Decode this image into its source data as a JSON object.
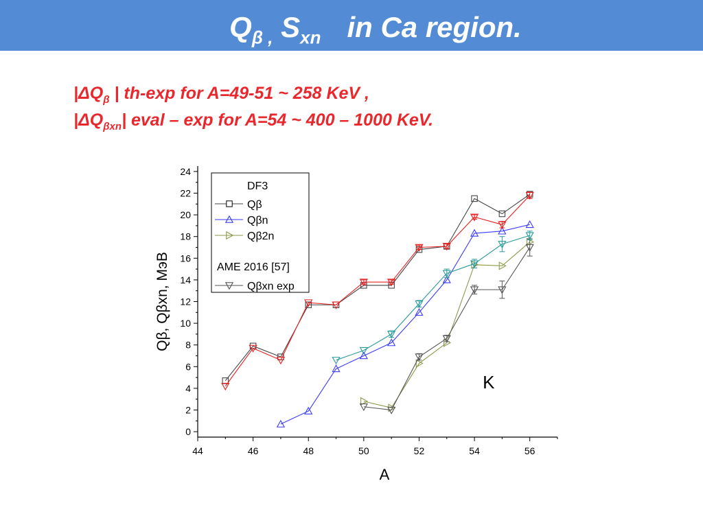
{
  "slide": {
    "title_main_1": "Q",
    "title_sub_1": "β ,",
    "title_main_2": "S",
    "title_sub_2": "xn",
    "title_rest": "in Ca region.",
    "note1_pre": "|ΔQ",
    "note1_sub": "β",
    "note1_post": " | th-exp  for A=49-51 ~ 258 KeV ,",
    "note2_pre": "|ΔQ",
    "note2_sub": "βxn",
    "note2_post": "| eval – exp  for A=54 ~ 400 – 1000 KeV.",
    "colors": {
      "header_bg": "#538cd5",
      "title_text": "#ffffff",
      "note_text": "#e8282d"
    }
  },
  "chart_data": {
    "type": "line",
    "xlabel": "A",
    "ylabel": "Qβ, Qβxn, МэВ",
    "xlim": [
      44,
      57
    ],
    "ylim": [
      -0.5,
      24.5
    ],
    "xticks": [
      44,
      46,
      48,
      50,
      52,
      54,
      56
    ],
    "yticks": [
      0,
      2,
      4,
      6,
      8,
      10,
      12,
      14,
      16,
      18,
      20,
      22,
      24
    ],
    "annotation": "K",
    "legend": {
      "position": "top-left",
      "group1_title": "DF3",
      "group2_title": "AME 2016 [57]"
    },
    "series": [
      {
        "name": "Qβ",
        "group": "DF3",
        "marker": "square",
        "color": "#444444",
        "x": [
          45,
          46,
          47,
          48,
          49,
          50,
          51,
          52,
          53,
          54,
          55,
          56
        ],
        "y": [
          4.7,
          7.9,
          6.9,
          11.7,
          11.7,
          13.5,
          13.5,
          16.8,
          17.1,
          21.5,
          20.1,
          21.9
        ]
      },
      {
        "name": "Qβn",
        "group": "DF3",
        "marker": "triangle-up",
        "color": "#3a3aff",
        "x": [
          47,
          48,
          49,
          50,
          51,
          52,
          53,
          54,
          55,
          56
        ],
        "y": [
          0.7,
          1.9,
          5.8,
          7.0,
          8.2,
          11.0,
          14.0,
          18.3,
          18.5,
          19.1
        ]
      },
      {
        "name": "Qβ2n",
        "group": "DF3",
        "marker": "triangle-right",
        "color": "#8a9a4a",
        "x": [
          50,
          51,
          52,
          53,
          54,
          55,
          56
        ],
        "y": [
          2.8,
          2.2,
          6.3,
          8.2,
          15.4,
          15.3,
          17.5
        ]
      },
      {
        "name": "Qβxn exp",
        "group": "AME 2016 [57]",
        "marker": "triangle-down",
        "color": "#555555",
        "x": [
          50,
          51,
          52,
          53,
          54,
          55,
          56
        ],
        "y": [
          2.3,
          2.0,
          6.9,
          8.6,
          13.1,
          13.1,
          17.0
        ],
        "err": [
          0,
          0,
          0.3,
          0.3,
          0.4,
          0.8,
          0.8
        ]
      },
      {
        "name": "",
        "group": "AME 2016 [57]",
        "marker": "triangle-down",
        "color": "#e82020",
        "x": [
          45,
          46,
          47,
          48,
          49,
          50,
          51,
          52,
          53,
          54,
          55,
          56
        ],
        "y": [
          4.2,
          7.7,
          6.6,
          11.9,
          11.7,
          13.8,
          13.8,
          17.0,
          17.1,
          19.8,
          19.1,
          21.8
        ],
        "err": [
          0,
          0,
          0,
          0,
          0,
          0.2,
          0.2,
          0.2,
          0.2,
          0.2,
          0.3,
          0.3
        ]
      },
      {
        "name": "",
        "group": "AME 2016 [57]",
        "marker": "triangle-down",
        "color": "#2a9a9a",
        "x": [
          49,
          50,
          51,
          52,
          53,
          54,
          55,
          56
        ],
        "y": [
          6.6,
          7.5,
          9.0,
          11.8,
          14.6,
          15.5,
          17.3,
          18.1
        ],
        "err": [
          0,
          0,
          0.3,
          0.3,
          0.4,
          0.4,
          0.7,
          0.4
        ]
      }
    ]
  }
}
